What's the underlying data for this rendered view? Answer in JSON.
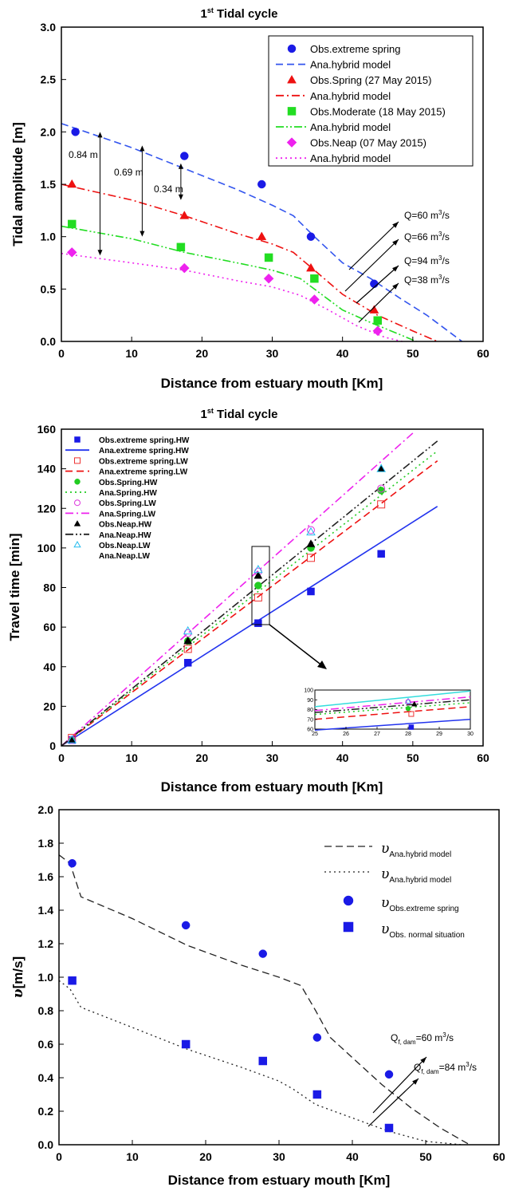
{
  "chart_data": [
    {
      "type": "scatter",
      "title": "1st Tidal cycle",
      "title_main": "1",
      "title_sup": "st",
      "title_rest": " Tidal cycle",
      "xlabel": "Distance from estuary mouth [Km]",
      "ylabel": "Tidal amplitude [m]",
      "xlim": [
        0,
        60
      ],
      "ylim": [
        0,
        3.0
      ],
      "xticks": [
        "0",
        "10",
        "20",
        "30",
        "40",
        "50",
        "60"
      ],
      "yticks": [
        "0.0",
        "0.5",
        "1.0",
        "1.5",
        "2.0",
        "2.5",
        "3.0"
      ],
      "legend_position": "top-right",
      "series": [
        {
          "name": "Obs.extreme spring",
          "kind": "points",
          "marker": "circle",
          "color": "#1a1ae6",
          "x": [
            2,
            17.5,
            28.5,
            35.5,
            44.5
          ],
          "y": [
            2.0,
            1.77,
            1.5,
            1.0,
            0.55
          ]
        },
        {
          "name": "Ana.hybrid model",
          "kind": "line",
          "dash": "dash",
          "color": "#3355ee",
          "x": [
            0,
            10,
            17.5,
            25,
            30,
            33,
            36,
            40,
            44,
            48,
            52,
            55,
            57
          ],
          "y": [
            2.08,
            1.85,
            1.65,
            1.45,
            1.3,
            1.2,
            1.0,
            0.75,
            0.6,
            0.42,
            0.25,
            0.1,
            0.0
          ]
        },
        {
          "name": "Obs.Spring (27 May 2015)",
          "kind": "points",
          "marker": "triangle",
          "color": "#ee1111",
          "x": [
            1.5,
            17.5,
            28.5,
            35.5,
            44.5
          ],
          "y": [
            1.5,
            1.2,
            1.0,
            0.7,
            0.3
          ]
        },
        {
          "name": "Ana.hybrid model",
          "kind": "line",
          "dash": "dashdot",
          "color": "#ee1111",
          "x": [
            0,
            10,
            17.5,
            25,
            30,
            33,
            36,
            40,
            45,
            50,
            53.5
          ],
          "y": [
            1.5,
            1.35,
            1.2,
            1.03,
            0.93,
            0.85,
            0.68,
            0.45,
            0.25,
            0.1,
            0.0
          ]
        },
        {
          "name": "Obs.Moderate (18 May 2015)",
          "kind": "points",
          "marker": "square",
          "color": "#22dd22",
          "x": [
            1.5,
            17,
            29.5,
            36,
            45
          ],
          "y": [
            1.12,
            0.9,
            0.8,
            0.6,
            0.2
          ]
        },
        {
          "name": "Ana.hybrid model",
          "kind": "line",
          "dash": "dashdotdot",
          "color": "#22dd22",
          "x": [
            0,
            10,
            17.5,
            25,
            30,
            34,
            37,
            40,
            44,
            48,
            50.5
          ],
          "y": [
            1.1,
            0.98,
            0.85,
            0.75,
            0.68,
            0.6,
            0.45,
            0.3,
            0.18,
            0.07,
            0.0
          ]
        },
        {
          "name": "Obs.Neap (07 May 2015)",
          "kind": "points",
          "marker": "diamond",
          "color": "#ee22ee",
          "x": [
            1.5,
            17.5,
            29.5,
            36,
            45
          ],
          "y": [
            0.85,
            0.7,
            0.6,
            0.4,
            0.1
          ]
        },
        {
          "name": "Ana.hybrid model",
          "kind": "line",
          "dash": "dot",
          "color": "#ee22ee",
          "x": [
            0,
            10,
            17.5,
            25,
            30,
            34,
            38,
            42,
            46,
            48.5
          ],
          "y": [
            0.84,
            0.75,
            0.68,
            0.58,
            0.52,
            0.44,
            0.3,
            0.15,
            0.04,
            0.0
          ]
        }
      ],
      "annotations": {
        "gaps": [
          {
            "label": "0.84 m",
            "x": 5.5,
            "y1": 2.0,
            "y2": 0.82
          },
          {
            "label": "0.69 m",
            "x": 11.5,
            "y1": 1.87,
            "y2": 1.0
          },
          {
            "label": "0.34 m",
            "x": 17,
            "y1": 1.7,
            "y2": 1.35
          }
        ],
        "discharges": [
          {
            "q": "Q=60",
            "unit": " m",
            "sup": "3",
            "tail": "/s"
          },
          {
            "q": "Q=66",
            "unit": " m",
            "sup": "3",
            "tail": "/s"
          },
          {
            "q": "Q=94",
            "unit": " m",
            "sup": "3",
            "tail": "/s"
          },
          {
            "q": "Q=38",
            "unit": " m",
            "sup": "3",
            "tail": "/s"
          }
        ]
      }
    },
    {
      "type": "scatter",
      "title": "1st Tidal cycle",
      "title_main": "1",
      "title_sup": "st",
      "title_rest": " Tidal cycle",
      "xlabel": "Distance from estuary mouth [Km]",
      "ylabel": "Travel time [min]",
      "xlim": [
        0,
        60
      ],
      "ylim": [
        0,
        160
      ],
      "xticks": [
        "0",
        "10",
        "20",
        "30",
        "40",
        "50",
        "60"
      ],
      "yticks": [
        "0",
        "20",
        "40",
        "60",
        "80",
        "100",
        "120",
        "140",
        "160"
      ],
      "legend_position": "top-left",
      "series": [
        {
          "name": "Obs.extreme spring.HW",
          "kind": "points",
          "marker": "square",
          "color": "#1a1ae6",
          "x": [
            1.5,
            18,
            28,
            35.5,
            45.5
          ],
          "y": [
            3,
            42,
            62,
            78,
            97
          ]
        },
        {
          "name": "Ana.extreme spring.HW",
          "kind": "line",
          "dash": "solid",
          "color": "#2233ee",
          "x": [
            0,
            53.5
          ],
          "y": [
            0,
            121
          ]
        },
        {
          "name": "Obs.extreme spring.LW",
          "kind": "points",
          "marker": "square-open",
          "color": "#ee3333",
          "x": [
            1.5,
            18,
            28,
            35.5,
            45.5
          ],
          "y": [
            4,
            49,
            75,
            95,
            122
          ]
        },
        {
          "name": "Ana.extreme spring.LW",
          "kind": "line",
          "dash": "dash",
          "color": "#ee1111",
          "x": [
            0,
            53.5
          ],
          "y": [
            0,
            144
          ]
        },
        {
          "name": "Obs.Spring.HW",
          "kind": "points",
          "marker": "circle",
          "color": "#22cc22",
          "x": [
            1.5,
            18,
            28,
            35.5,
            45.5
          ],
          "y": [
            3,
            53,
            81,
            100,
            129
          ]
        },
        {
          "name": "Ana.Spring.HW",
          "kind": "line",
          "dash": "dot",
          "color": "#22cc22",
          "x": [
            0,
            53.5
          ],
          "y": [
            0,
            149
          ]
        },
        {
          "name": "Obs.Spring.LW",
          "kind": "points",
          "marker": "circle-open",
          "color": "#dd33dd",
          "x": [
            1.5,
            18,
            28,
            35.5,
            45.5
          ],
          "y": [
            3,
            57,
            88,
            109,
            130
          ]
        },
        {
          "name": "Ana.Spring.LW",
          "kind": "line",
          "dash": "dashdot",
          "color": "#ee22ee",
          "x": [
            0,
            50
          ],
          "y": [
            0,
            158
          ]
        },
        {
          "name": "Obs.Neap.HW",
          "kind": "points",
          "marker": "triangle",
          "color": "#000000",
          "x": [
            1.5,
            18,
            28,
            35.5,
            45.5
          ],
          "y": [
            3,
            53,
            86,
            102,
            140
          ]
        },
        {
          "name": "Ana.Neap.HW",
          "kind": "line",
          "dash": "dashdotdot",
          "color": "#222222",
          "x": [
            0,
            53.5
          ],
          "y": [
            0,
            154
          ]
        },
        {
          "name": "Obs.Neap.LW",
          "kind": "points",
          "marker": "triangle-open",
          "color": "#22bbee",
          "x": [
            1.5,
            18,
            28,
            35.5,
            45.5
          ],
          "y": [
            3,
            58,
            89,
            108,
            140
          ]
        },
        {
          "name": "Ana.Neap.LW",
          "kind": "line",
          "dash": "solid",
          "color": "#33dddd",
          "x": [
            0,
            0
          ],
          "y": [
            0,
            0
          ]
        }
      ],
      "inset": {
        "xlim": [
          25,
          30
        ],
        "ylim": [
          60,
          100
        ],
        "xticks": [
          "25",
          "26",
          "27",
          "28",
          "29",
          "30"
        ],
        "yticks": [
          "60",
          "70",
          "80",
          "90",
          "100"
        ],
        "lines": [
          {
            "color": "#33dddd",
            "dash": "solid",
            "x": [
              25,
              30
            ],
            "y": [
              83,
              99
            ]
          },
          {
            "color": "#ee22ee",
            "dash": "dashdot",
            "x": [
              25,
              30
            ],
            "y": [
              79,
              93
            ]
          },
          {
            "color": "#222222",
            "dash": "dashdotdot",
            "x": [
              25,
              30
            ],
            "y": [
              77,
              90
            ]
          },
          {
            "color": "#22cc22",
            "dash": "dot",
            "x": [
              25,
              30
            ],
            "y": [
              75,
              87
            ]
          },
          {
            "color": "#ee1111",
            "dash": "dash",
            "x": [
              25,
              30
            ],
            "y": [
              70,
              83
            ]
          },
          {
            "color": "#2233ee",
            "dash": "solid",
            "x": [
              25,
              30
            ],
            "y": [
              59,
              70
            ]
          }
        ],
        "points": [
          {
            "marker": "triangle-open",
            "color": "#22bbee",
            "x": 28.0,
            "y": 88.5
          },
          {
            "marker": "triangle",
            "color": "#000000",
            "x": 28.2,
            "y": 85.5
          },
          {
            "marker": "circle-open",
            "color": "#dd33dd",
            "x": 28.0,
            "y": 88
          },
          {
            "marker": "circle",
            "color": "#22cc22",
            "x": 28.0,
            "y": 81
          },
          {
            "marker": "square-open",
            "color": "#ee3333",
            "x": 28.1,
            "y": 75.5
          },
          {
            "marker": "square",
            "color": "#1a1ae6",
            "x": 28.1,
            "y": 62
          }
        ]
      }
    },
    {
      "type": "scatter",
      "title": "",
      "xlabel": "Distance from estuary mouth [Km]",
      "ylabel": "v[m/s]",
      "ylabel_sym": "υ",
      "ylabel_rest": "[m/s]",
      "xlim": [
        0,
        60
      ],
      "ylim": [
        0,
        2.0
      ],
      "xticks": [
        "0",
        "10",
        "20",
        "30",
        "40",
        "50",
        "60"
      ],
      "yticks": [
        "0.0",
        "0.2",
        "0.4",
        "0.6",
        "0.8",
        "1.0",
        "1.2",
        "1.4",
        "1.6",
        "1.8",
        "2.0"
      ],
      "legend_position": "top-right",
      "series": [
        {
          "name": "Ana.hybrid model",
          "sym": "υ",
          "kind": "line",
          "dash": "dash",
          "color": "#222222",
          "x": [
            0,
            1.5,
            3,
            10,
            17.5,
            25,
            30,
            33,
            35,
            37,
            40,
            44,
            48,
            52,
            56
          ],
          "y": [
            1.73,
            1.68,
            1.48,
            1.35,
            1.19,
            1.07,
            1.0,
            0.95,
            0.8,
            0.64,
            0.52,
            0.36,
            0.22,
            0.1,
            0.0
          ]
        },
        {
          "name": "Ana.hybrid model",
          "sym": "υ",
          "kind": "line",
          "dash": "dot",
          "color": "#222222",
          "x": [
            0,
            1.5,
            3,
            10,
            17.5,
            25,
            30,
            32,
            35,
            40,
            45,
            50,
            55
          ],
          "y": [
            0.98,
            0.93,
            0.82,
            0.7,
            0.57,
            0.46,
            0.38,
            0.33,
            0.24,
            0.16,
            0.08,
            0.02,
            0.0
          ]
        },
        {
          "name": "Obs.extreme spring",
          "sym": "υ",
          "kind": "points",
          "marker": "circle",
          "color": "#1a1ae6",
          "x": [
            1.8,
            17.3,
            27.8,
            35.2,
            45
          ],
          "y": [
            1.68,
            1.31,
            1.14,
            0.64,
            0.42
          ]
        },
        {
          "name": "Obs. normal situation",
          "sym": "υ",
          "kind": "points",
          "marker": "square",
          "color": "#1a1ae6",
          "x": [
            1.8,
            17.3,
            27.8,
            35.2,
            45
          ],
          "y": [
            0.98,
            0.6,
            0.5,
            0.3,
            0.1
          ]
        }
      ],
      "annotations": {
        "discharges": [
          {
            "q": "Q",
            "sub": "f, dam",
            "rest": "=60 m",
            "sup": "3",
            "tail": "/s"
          },
          {
            "q": "Q",
            "sub": "f, dam",
            "rest": "=84 m",
            "sup": "3",
            "tail": "/s"
          }
        ]
      }
    }
  ]
}
